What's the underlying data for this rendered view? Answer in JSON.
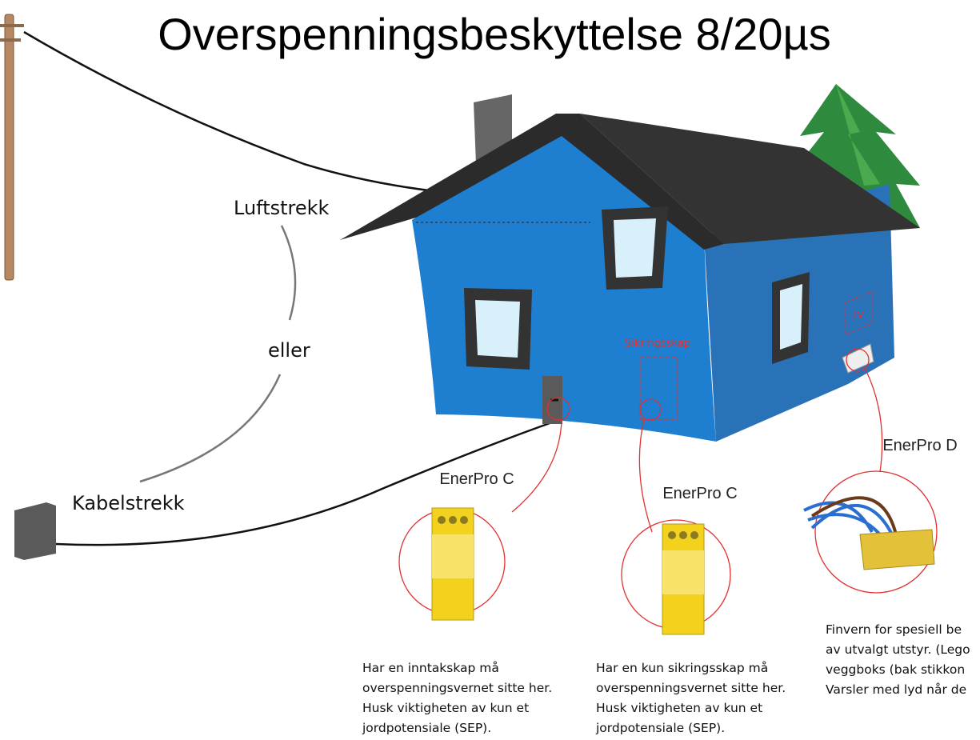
{
  "title": "Overspenningsbeskyttelse 8/20µs",
  "connections": {
    "overhead": "Luftstrekk",
    "or": "eller",
    "cable": "Kabelstrekk"
  },
  "house": {
    "fuse_box": "Sikringsskap",
    "tv": "TV"
  },
  "devices": [
    {
      "name": "EnerPro C",
      "description": [
        "Har en inntakskap må",
        "overspenningsvernet sitte her.",
        "Husk viktigheten av kun et",
        "jordpotensiale (SEP)."
      ]
    },
    {
      "name": "EnerPro C",
      "description": [
        "Har en kun sikringsskap må",
        "overspenningsvernet sitte her.",
        "Husk viktigheten av kun et",
        "jordpotensiale (SEP)."
      ]
    },
    {
      "name": "EnerPro D",
      "description": [
        "Finvern for spesiell be",
        "av utvalgt utstyr. (Lego",
        "veggboks (bak stikkon",
        "Varsler med lyd når de"
      ]
    }
  ]
}
